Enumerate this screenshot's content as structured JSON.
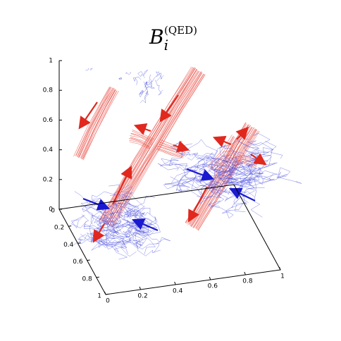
{
  "chart_data": {
    "type": "field-lines-3d",
    "title": "B",
    "title_subscript": "i",
    "title_superscript": "(QED)",
    "xlim": [
      0,
      1
    ],
    "ylim": [
      0,
      1
    ],
    "zlim": [
      0,
      1
    ],
    "xticks": [
      0,
      0.2,
      0.4,
      0.6,
      0.8,
      1
    ],
    "yticks": [
      0,
      0.2,
      0.4,
      0.6,
      0.8,
      1
    ],
    "zticks": [
      0,
      0.2,
      0.4,
      0.6,
      0.8,
      1
    ]
  }
}
